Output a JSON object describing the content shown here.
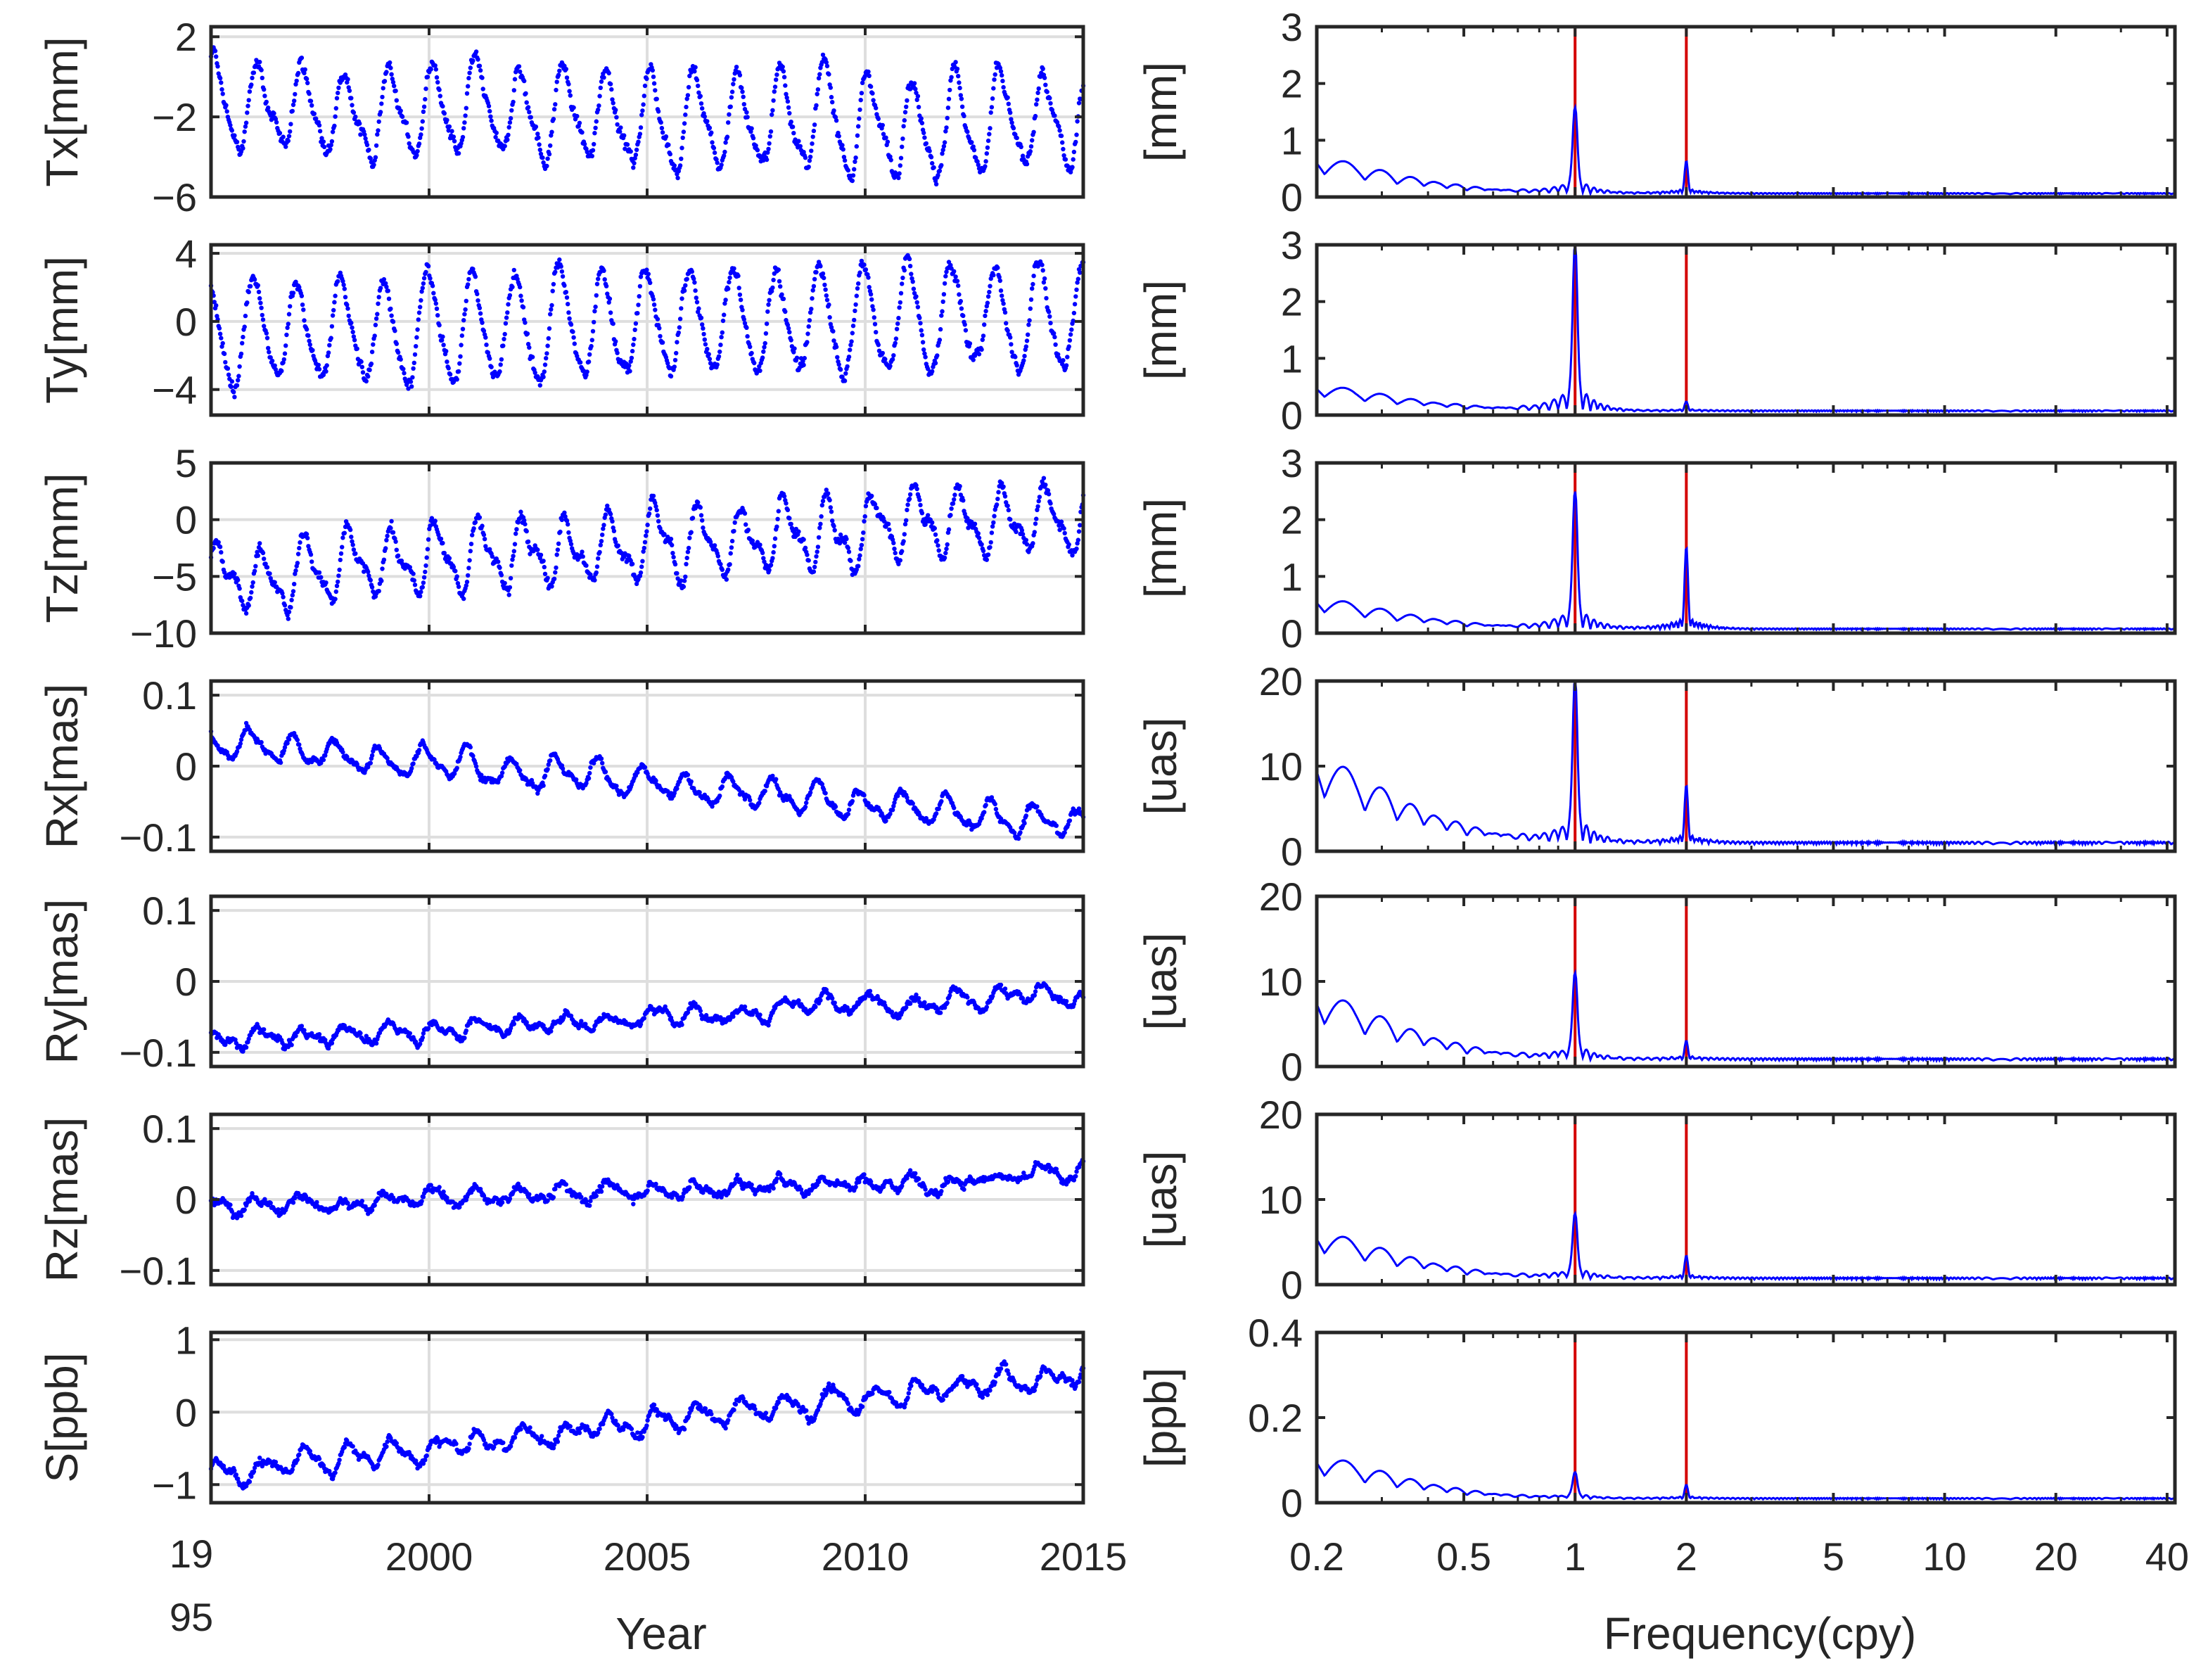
{
  "chart_data": {
    "type": "line",
    "x_axis_left": {
      "label": "Year",
      "range": [
        1995,
        2015
      ],
      "ticks": [
        1995,
        2000,
        2005,
        2010,
        2015
      ],
      "tick_labels": [
        "1995",
        "2000",
        "2005",
        "2010",
        "2015"
      ],
      "first_tick_label_lines": [
        "19",
        "95"
      ]
    },
    "x_axis_right": {
      "label": "Frequency(cpy)",
      "scale": "log",
      "range": [
        0.2,
        42
      ],
      "ticks": [
        0.2,
        0.5,
        1,
        2,
        5,
        10,
        20,
        40
      ],
      "tick_labels": [
        "0.2",
        "0.5",
        "1",
        "2",
        "5",
        "10",
        "20",
        "40"
      ],
      "reference_lines": [
        1,
        2
      ]
    },
    "colors": {
      "series": "#0000ff",
      "reference": "#d40000",
      "grid": "#dedede",
      "axes": "#262626"
    },
    "panels": [
      {
        "name": "Tx",
        "ylabel": "Tx[mm]",
        "ylim": [
          -6,
          2.5
        ],
        "yticks": [
          2,
          -2,
          -6
        ],
        "ytick_labels": [
          "2",
          "−2",
          "−6"
        ],
        "time_series": {
          "offset": -1.5,
          "trend": -1.0,
          "annual_amp": 2.2,
          "semiannual_amp": 0.6,
          "noise": 0.5,
          "phase": 0.9
        },
        "spectrum": {
          "ylabel": "[mm]",
          "ylim": [
            0,
            3
          ],
          "yticks": [
            3,
            2,
            1,
            0
          ],
          "ytick_labels": [
            "3",
            "2",
            "1",
            "0"
          ],
          "low_freq_amp": 0.7,
          "peak_annual": 1.5,
          "peak_semiannual": 0.55,
          "floor": 0.05
        }
      },
      {
        "name": "Ty",
        "ylabel": "Ty[mm]",
        "ylim": [
          -5.5,
          4.5
        ],
        "yticks": [
          4,
          0,
          -4
        ],
        "ytick_labels": [
          "4",
          "0",
          "−4"
        ],
        "time_series": {
          "offset": -0.8,
          "trend": 1.2,
          "annual_amp": 3.0,
          "semiannual_amp": 0.4,
          "noise": 0.6,
          "phase": 1.6
        },
        "spectrum": {
          "ylabel": "[mm]",
          "ylim": [
            0,
            3
          ],
          "yticks": [
            3,
            2,
            1,
            0
          ],
          "ytick_labels": [
            "3",
            "2",
            "1",
            "0"
          ],
          "low_freq_amp": 0.5,
          "peak_annual": 2.9,
          "peak_semiannual": 0.15,
          "floor": 0.06
        }
      },
      {
        "name": "Tz",
        "ylabel": "Tz[mm]",
        "ylim": [
          -10,
          5
        ],
        "yticks": [
          5,
          0,
          -5,
          -10
        ],
        "ytick_labels": [
          "5",
          "0",
          "−5",
          "−10"
        ],
        "time_series": {
          "offset": -5.0,
          "trend": 5.5,
          "annual_amp": 2.6,
          "semiannual_amp": 1.2,
          "noise": 0.8,
          "phase": 0.4
        },
        "spectrum": {
          "ylabel": "[mm]",
          "ylim": [
            0,
            3
          ],
          "yticks": [
            3,
            2,
            1,
            0
          ],
          "ytick_labels": [
            "3",
            "2",
            "1",
            "0"
          ],
          "low_freq_amp": 0.6,
          "peak_annual": 2.4,
          "peak_semiannual": 1.4,
          "floor": 0.06
        }
      },
      {
        "name": "Rx",
        "ylabel": "Rx[mas]",
        "ylim": [
          -0.12,
          0.12
        ],
        "yticks": [
          0.1,
          0,
          -0.1
        ],
        "ytick_labels": [
          "0.1",
          "0",
          "−0.1"
        ],
        "time_series": {
          "offset": 0.035,
          "trend": -0.115,
          "annual_amp": 0.018,
          "semiannual_amp": 0.006,
          "noise": 0.008,
          "phase": 2.2
        },
        "spectrum": {
          "ylabel": "[uas]",
          "ylim": [
            0,
            20
          ],
          "yticks": [
            20,
            10,
            0
          ],
          "ytick_labels": [
            "20",
            "10",
            "0"
          ],
          "low_freq_amp": 11,
          "peak_annual": 19,
          "peak_semiannual": 6.5,
          "floor": 0.8
        }
      },
      {
        "name": "Ry",
        "ylabel": "Ry[mas]",
        "ylim": [
          -0.12,
          0.12
        ],
        "yticks": [
          0.1,
          0,
          -0.1
        ],
        "ytick_labels": [
          "0.1",
          "0",
          "−0.1"
        ],
        "time_series": {
          "offset": -0.085,
          "trend": 0.07,
          "annual_amp": 0.01,
          "semiannual_amp": 0.004,
          "noise": 0.008,
          "phase": 0.7
        },
        "spectrum": {
          "ylabel": "[uas]",
          "ylim": [
            0,
            20
          ],
          "yticks": [
            20,
            10,
            0
          ],
          "ytick_labels": [
            "20",
            "10",
            "0"
          ],
          "low_freq_amp": 8.5,
          "peak_annual": 10,
          "peak_semiannual": 2,
          "floor": 0.7
        }
      },
      {
        "name": "Rz",
        "ylabel": "Rz[mas]",
        "ylim": [
          -0.12,
          0.12
        ],
        "yticks": [
          0.1,
          0,
          -0.1
        ],
        "ytick_labels": [
          "0.1",
          "0",
          "−0.1"
        ],
        "time_series": {
          "offset": -0.01,
          "trend": 0.045,
          "annual_amp": 0.008,
          "semiannual_amp": 0.003,
          "noise": 0.009,
          "phase": 1.1
        },
        "spectrum": {
          "ylabel": "[uas]",
          "ylim": [
            0,
            20
          ],
          "yticks": [
            20,
            10,
            0
          ],
          "ytick_labels": [
            "20",
            "10",
            "0"
          ],
          "low_freq_amp": 6,
          "peak_annual": 7.5,
          "peak_semiannual": 2.5,
          "floor": 0.6
        }
      },
      {
        "name": "S",
        "ylabel": "S[ppb]",
        "ylim": [
          -1.25,
          1.1
        ],
        "yticks": [
          1,
          0,
          -1
        ],
        "ytick_labels": [
          "1",
          "0",
          "−1"
        ],
        "time_series": {
          "offset": -0.85,
          "trend": 1.4,
          "annual_amp": 0.12,
          "semiannual_amp": 0.05,
          "noise": 0.09,
          "phase": 0.3
        },
        "spectrum": {
          "ylabel": "[ppb]",
          "ylim": [
            0,
            0.4
          ],
          "yticks": [
            0.4,
            0.2,
            0
          ],
          "ytick_labels": [
            "0.4",
            "0.2",
            "0"
          ],
          "low_freq_amp": 0.11,
          "peak_annual": 0.06,
          "peak_semiannual": 0.03,
          "floor": 0.008
        }
      }
    ]
  }
}
